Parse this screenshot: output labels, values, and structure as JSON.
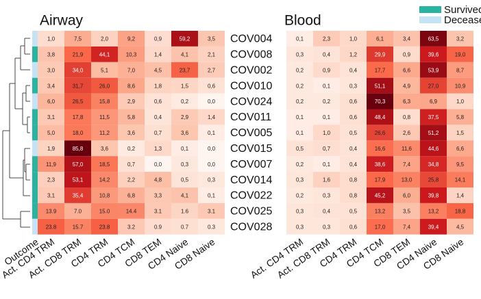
{
  "chart_data": [
    {
      "type": "heatmap",
      "title": "Airway",
      "rows": [
        "COV004",
        "COV008",
        "COV002",
        "COV010",
        "COV024",
        "COV011",
        "COV005",
        "COV015",
        "COV007",
        "COV014",
        "COV022",
        "COV025",
        "COV028"
      ],
      "columns": [
        "Act. CD4 TRM",
        "Act. CD8 TRM",
        "CD4 TRM",
        "CD4 TCM",
        "CD8 TEM",
        "CD4 Naive",
        "CD8 Naive"
      ],
      "outcome_label": "Outcome",
      "outcome": [
        "Deceased",
        "Survived",
        "Deceased",
        "Survived",
        "Deceased",
        "Survived",
        "Survived",
        "Deceased",
        "Survived",
        "Survived",
        "Survived",
        "Survived",
        "Deceased"
      ],
      "legend": [
        {
          "name": "Survived",
          "color": "#2ab3a0"
        },
        {
          "name": "Deceased",
          "color": "#c6e2f5"
        }
      ],
      "zlim": [
        0,
        86
      ],
      "values": [
        [
          1.0,
          7.5,
          2.0,
          9.2,
          0.9,
          59.2,
          3.5
        ],
        [
          3.8,
          21.9,
          44.1,
          10.3,
          1.4,
          4.1,
          2.1
        ],
        [
          3.0,
          34.0,
          5.1,
          7.0,
          4.5,
          23.7,
          2.7
        ],
        [
          3.4,
          31.7,
          26.0,
          8.6,
          1.8,
          1.5,
          0.6
        ],
        [
          6.0,
          26.5,
          15.8,
          2.9,
          0.6,
          0.2,
          0.0
        ],
        [
          3.1,
          17.8,
          11.5,
          5.8,
          0.4,
          2.9,
          1.4
        ],
        [
          5.0,
          18.0,
          11.2,
          3.6,
          0.7,
          3.6,
          0.1
        ],
        [
          1.9,
          85.8,
          3.6,
          0.2,
          1.3,
          0.1,
          0.0
        ],
        [
          11.9,
          57.0,
          18.5,
          0.7,
          0.0,
          0.3,
          0.0
        ],
        [
          2.3,
          53.1,
          14.2,
          2.2,
          4.8,
          0.5,
          0.3
        ],
        [
          3.1,
          35.4,
          10.8,
          6.8,
          3.3,
          4.1,
          0.1
        ],
        [
          13.9,
          7.0,
          15.0,
          14.4,
          3.1,
          1.6,
          3.1
        ],
        [
          23.8,
          15.7,
          23.8,
          3.2,
          0.9,
          0.7,
          0.3
        ]
      ],
      "value_labels": [
        [
          "1,0",
          "7,5",
          "2,0",
          "9,2",
          "0,9",
          "59,2",
          "3,5"
        ],
        [
          "3,8",
          "21,9",
          "44,1",
          "10,3",
          "1,4",
          "4,1",
          "2,1"
        ],
        [
          "3,0",
          "34,0",
          "5,1",
          "7,0",
          "4,5",
          "23,7",
          "2,7"
        ],
        [
          "3,4",
          "31,7",
          "26,0",
          "8,6",
          "1,8",
          "1,5",
          "0,6"
        ],
        [
          "6,0",
          "26,5",
          "15,8",
          "2,9",
          "0,6",
          "0,2",
          "0,0"
        ],
        [
          "3,1",
          "17,8",
          "11,5",
          "5,8",
          "0,4",
          "2,9",
          "1,4"
        ],
        [
          "5,0",
          "18,0",
          "11,2",
          "3,6",
          "0,7",
          "3,6",
          "0,1"
        ],
        [
          "1,9",
          "85,8",
          "3,6",
          "0,2",
          "1,3",
          "0,1",
          "0,0"
        ],
        [
          "11,9",
          "57,0",
          "18,5",
          "0,7",
          "0,0",
          "0,3",
          "0,0"
        ],
        [
          "2,3",
          "53,1",
          "14,2",
          "2,2",
          "4,8",
          "0,5",
          "0,3"
        ],
        [
          "3,1",
          "35,4",
          "10,8",
          "6,8",
          "3,3",
          "4,1",
          "0,1"
        ],
        [
          "13.9",
          "7.0",
          "15.0",
          "14.4",
          "3.1",
          "1.6",
          "3.1"
        ],
        [
          "23.8",
          "15.7",
          "23.8",
          "3.2",
          "0.9",
          "0.7",
          "0.3"
        ]
      ]
    },
    {
      "type": "heatmap",
      "title": "Blood",
      "columns": [
        "Act. CD4 TRM",
        "Act. CD8 TRM",
        "CD4 TRM",
        "CD4 TCM",
        "CD8 TEM",
        "CD4 Naive",
        "CD8 Naive"
      ],
      "zlim": [
        0,
        71
      ],
      "values": [
        [
          0.1,
          2.3,
          1.0,
          6.1,
          3.4,
          63.5,
          3.2
        ],
        [
          0.3,
          0.4,
          1.2,
          29.9,
          0.9,
          39.6,
          19.0
        ],
        [
          0.2,
          0.9,
          0.4,
          17.7,
          6.6,
          53.9,
          8.7
        ],
        [
          0.2,
          0.1,
          0.3,
          51.1,
          4.9,
          27.0,
          10.9
        ],
        [
          0.2,
          0.2,
          0.6,
          70.3,
          6.3,
          6.9,
          1.0
        ],
        [
          0.1,
          0.1,
          0.6,
          48.4,
          0.8,
          37.5,
          5.8
        ],
        [
          0.1,
          1.0,
          0.5,
          26.6,
          2.6,
          51.2,
          1.5
        ],
        [
          0.5,
          0.7,
          0.4,
          16.6,
          11.6,
          44.6,
          6.6
        ],
        [
          0.2,
          0.1,
          0.4,
          38.6,
          7.4,
          34.8,
          9.5
        ],
        [
          0.3,
          1.6,
          0.8,
          17.9,
          13.0,
          25.8,
          14.1
        ],
        [
          0.2,
          0.3,
          0.8,
          45.2,
          6.0,
          39.8,
          1.4
        ],
        [
          0.3,
          0.4,
          0.5,
          13.2,
          3.5,
          13.2,
          18.8
        ],
        [
          0.3,
          0.3,
          0.6,
          17.0,
          7.4,
          39.4,
          4.5
        ]
      ],
      "value_labels": [
        [
          "0,1",
          "2,3",
          "1,0",
          "6,1",
          "3,4",
          "63,5",
          "3,2"
        ],
        [
          "0,3",
          "0,4",
          "1,2",
          "29,9",
          "0,9",
          "39,6",
          "19,0"
        ],
        [
          "0,2",
          "0,9",
          "0,4",
          "17,7",
          "6,6",
          "53,9",
          "8,7"
        ],
        [
          "0,2",
          "0,1",
          "0,3",
          "51,1",
          "4,9",
          "27,0",
          "10,9"
        ],
        [
          "0,2",
          "0,2",
          "0,6",
          "70,3",
          "6,3",
          "6,9",
          "1,0"
        ],
        [
          "0,1",
          "0,1",
          "0,6",
          "48,4",
          "0,8",
          "37,5",
          "5,8"
        ],
        [
          "0,1",
          "1,0",
          "0,5",
          "26,6",
          "2,6",
          "51,2",
          "1,5"
        ],
        [
          "0,5",
          "0,7",
          "0,4",
          "16,6",
          "11,6",
          "44,6",
          "6,6"
        ],
        [
          "0,2",
          "0,1",
          "0,4",
          "38,6",
          "7,4",
          "34,8",
          "9,5"
        ],
        [
          "0,3",
          "1,6",
          "0,8",
          "17,9",
          "13,0",
          "25,8",
          "14,1"
        ],
        [
          "0,2",
          "0,3",
          "0,8",
          "45,2",
          "6,0",
          "39,8",
          "1,4"
        ],
        [
          "0,3",
          "0,4",
          "0,5",
          "13,2",
          "3,5",
          "13,2",
          "18,8"
        ],
        [
          "0,3",
          "0,3",
          "0,6",
          "17,0",
          "7,4",
          "39,4",
          "4,5"
        ]
      ]
    }
  ]
}
